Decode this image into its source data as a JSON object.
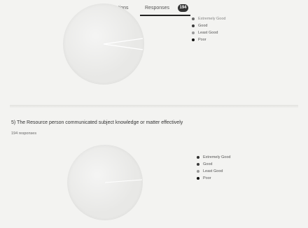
{
  "tabs": {
    "questions_label": "Questions",
    "responses_label": "Responses",
    "responses_badge": "194"
  },
  "charts": [
    {
      "legend": [
        {
          "label": "Extremely Good",
          "color": "#2f2f2f"
        },
        {
          "label": "Good",
          "color": "#3a3a3a"
        },
        {
          "label": "Least Good",
          "color": "#9a9a9a"
        },
        {
          "label": "Poor",
          "color": "#111111"
        }
      ]
    },
    {
      "question": "5) The Resource person communicated subject knowledge or matter effectively",
      "responses": "194 responses",
      "legend": [
        {
          "label": "Extremely Good",
          "color": "#2f2f2f"
        },
        {
          "label": "Good",
          "color": "#3a3a3a"
        },
        {
          "label": "Least Good",
          "color": "#9a9a9a"
        },
        {
          "label": "Poor",
          "color": "#111111"
        }
      ]
    }
  ]
}
